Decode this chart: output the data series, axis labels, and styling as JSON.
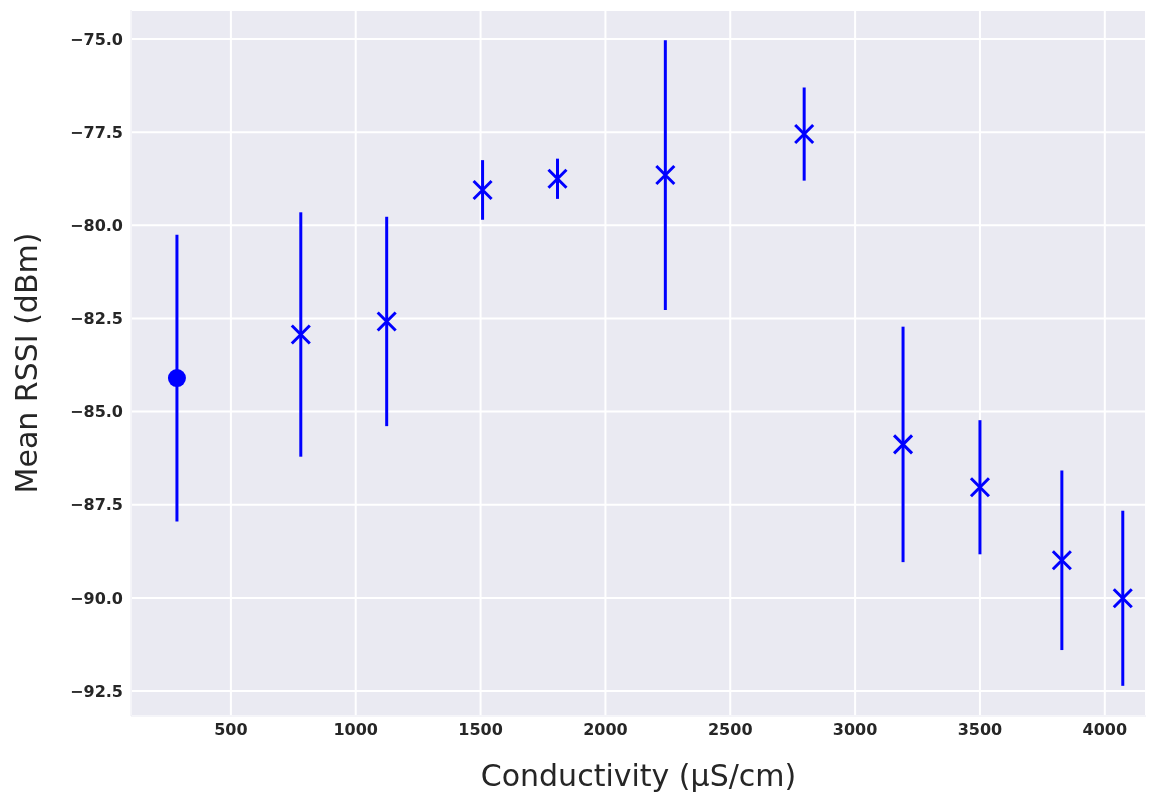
{
  "chart_data": {
    "type": "scatter",
    "xlabel": "Conductivity (µS/cm)",
    "ylabel": "Mean RSSI (dBm)",
    "series": [
      {
        "color": "#0000ff",
        "marker": "circle",
        "x": [
          284
        ],
        "values": [
          -84.1
        ],
        "errors": [
          3.85
        ]
      },
      {
        "color": "#0000ff",
        "marker": "cross",
        "x": [
          780,
          1124,
          1508,
          1808,
          2240,
          2796,
          3192,
          3500,
          3828,
          4072
        ],
        "values": [
          -82.93,
          -82.58,
          -79.05,
          -78.75,
          -78.65,
          -77.55,
          -85.88,
          -87.03,
          -88.99,
          -90.01
        ],
        "errors": [
          3.28,
          2.81,
          0.8,
          0.54,
          3.62,
          1.25,
          3.16,
          1.8,
          2.41,
          2.35
        ]
      }
    ],
    "xlim": [
      100,
      4165
    ],
    "xticks": [
      500,
      1000,
      1500,
      2000,
      2500,
      3000,
      3500,
      4000
    ],
    "ylim": [
      -93.17,
      -74.22
    ],
    "yticks": [
      {
        "value": -92.5,
        "label": "−92.5"
      },
      {
        "value": -90,
        "label": "−90.0"
      },
      {
        "value": -87.5,
        "label": "−87.5"
      },
      {
        "value": -85,
        "label": "−85.0"
      },
      {
        "value": -82.5,
        "label": "−82.5"
      },
      {
        "value": -80,
        "label": "−80.0"
      },
      {
        "value": -77.5,
        "label": "−77.5"
      },
      {
        "value": -75,
        "label": "−75.0"
      }
    ],
    "grid": true
  }
}
